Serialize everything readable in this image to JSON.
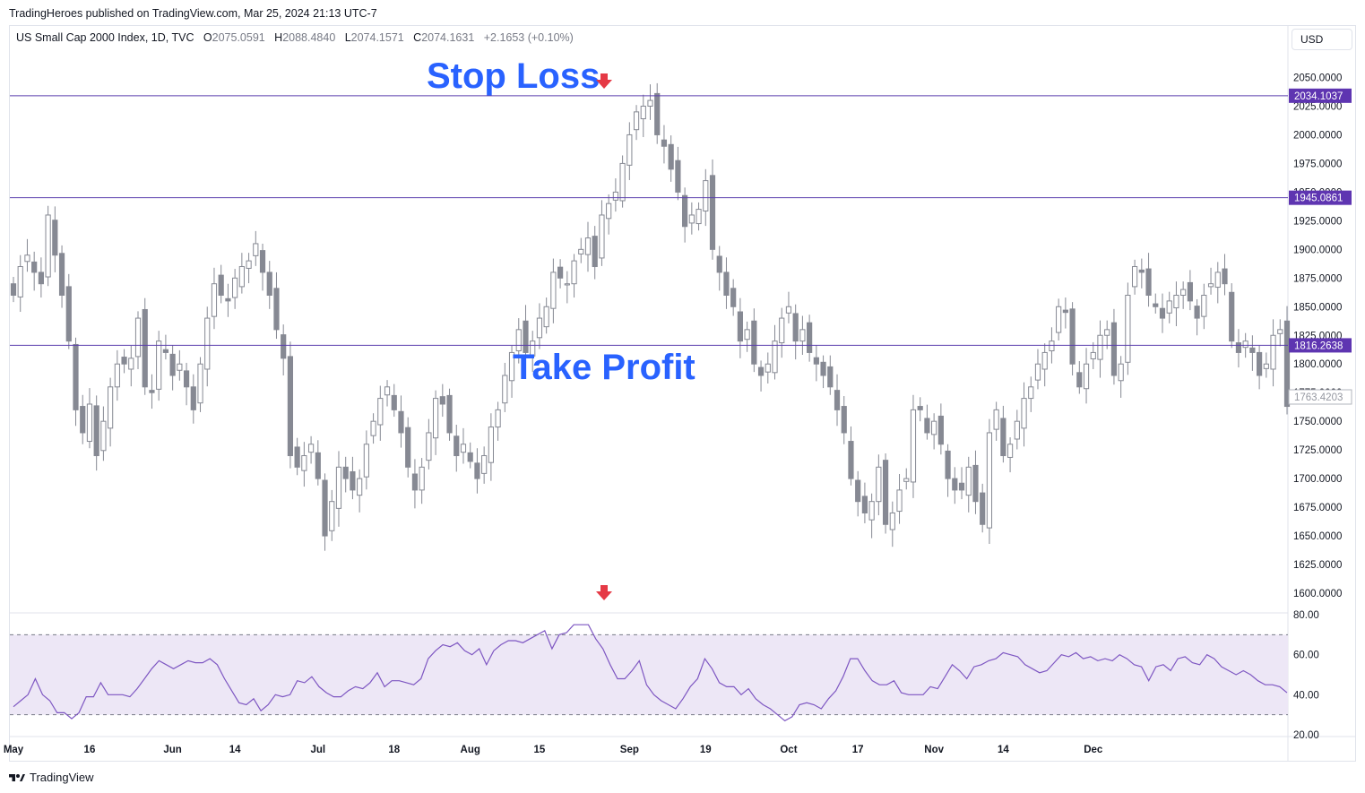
{
  "publisher_line": "TradingHeroes published on TradingView.com, Mar 25, 2024 21:13 UTC-7",
  "symbol_title": "US Small Cap 2000 Index, 1D, TVC",
  "ohlc": {
    "open_label": "O",
    "open": "2075.0591",
    "high_label": "H",
    "high": "2088.4840",
    "low_label": "L",
    "low": "2074.1571",
    "close_label": "C",
    "close": "2074.1631",
    "change": "+2.1653 (+0.10%)"
  },
  "currency": "USD",
  "brand": "TradingView",
  "annotations": {
    "stop_loss": "Stop Loss",
    "take_profit": "Take Profit"
  },
  "colors": {
    "candle": "#868993",
    "level_line": "#5b3fae",
    "level_badge": "#5e35b1",
    "annotation": "#2962ff",
    "arrow": "#e53945",
    "rsi_line": "#7e57c2",
    "rsi_band": "#ede7f6"
  },
  "chart_data": {
    "type": "candlestick",
    "price_axis": {
      "ylim": [
        1590,
        2060
      ],
      "ticks": [
        "2050.0000",
        "2025.0000",
        "2000.0000",
        "1975.0000",
        "1950.0000",
        "1925.0000",
        "1900.0000",
        "1875.0000",
        "1850.0000",
        "1825.0000",
        "1800.0000",
        "1775.0000",
        "1750.0000",
        "1725.0000",
        "1700.0000",
        "1675.0000",
        "1650.0000",
        "1625.0000",
        "1600.0000"
      ],
      "tick_values": [
        2050,
        2025,
        2000,
        1975,
        1950,
        1925,
        1900,
        1875,
        1850,
        1825,
        1800,
        1775,
        1750,
        1725,
        1700,
        1675,
        1650,
        1625,
        1600
      ]
    },
    "levels": [
      {
        "value": 2034.1037,
        "label": "2034.1037"
      },
      {
        "value": 1945.0861,
        "label": "1945.0861"
      },
      {
        "value": 1816.2638,
        "label": "1816.2638"
      }
    ],
    "last_price": {
      "value": 1763.4203,
      "label": "1763.4203"
    },
    "x_ticks": [
      "May",
      "16",
      "Jun",
      "14",
      "Jul",
      "18",
      "Aug",
      "15",
      "Sep",
      "19",
      "Oct",
      "17",
      "Nov",
      "14",
      "Dec"
    ],
    "x_tick_index": [
      0,
      11,
      23,
      32,
      44,
      55,
      66,
      76,
      89,
      100,
      112,
      122,
      133,
      143,
      156
    ],
    "close": [
      1860,
      1885,
      1895,
      1880,
      1870,
      1930,
      1895,
      1860,
      1820,
      1760,
      1740,
      1765,
      1720,
      1750,
      1780,
      1800,
      1800,
      1805,
      1840,
      1780,
      1775,
      1820,
      1810,
      1790,
      1800,
      1780,
      1760,
      1800,
      1840,
      1870,
      1860,
      1855,
      1875,
      1885,
      1890,
      1905,
      1880,
      1860,
      1830,
      1805,
      1720,
      1710,
      1720,
      1730,
      1700,
      1650,
      1680,
      1710,
      1700,
      1690,
      1700,
      1730,
      1750,
      1770,
      1780,
      1760,
      1740,
      1710,
      1690,
      1710,
      1740,
      1770,
      1765,
      1740,
      1720,
      1730,
      1715,
      1700,
      1720,
      1745,
      1760,
      1790,
      1810,
      1830,
      1810,
      1820,
      1840,
      1850,
      1880,
      1875,
      1870,
      1890,
      1900,
      1910,
      1885,
      1930,
      1940,
      1950,
      1975,
      2000,
      2020,
      2025,
      2030,
      2000,
      1990,
      1970,
      1950,
      1920,
      1930,
      1935,
      1960,
      1900,
      1880,
      1860,
      1850,
      1820,
      1830,
      1800,
      1790,
      1800,
      1820,
      1840,
      1850,
      1820,
      1830,
      1810,
      1800,
      1790,
      1780,
      1760,
      1740,
      1700,
      1680,
      1670,
      1680,
      1710,
      1660,
      1670,
      1690,
      1700,
      1760,
      1760,
      1740,
      1750,
      1730,
      1700,
      1690,
      1690,
      1710,
      1680,
      1660,
      1740,
      1760,
      1720,
      1730,
      1750,
      1770,
      1780,
      1800,
      1810,
      1820,
      1850,
      1845,
      1800,
      1780,
      1800,
      1810,
      1825,
      1830,
      1790,
      1800,
      1860,
      1885,
      1880,
      1860,
      1850,
      1840,
      1855,
      1860,
      1865,
      1855,
      1840,
      1860,
      1870,
      1880,
      1870,
      1820,
      1810,
      1820,
      1810,
      1790,
      1800,
      1825,
      1830,
      1763
    ],
    "rsi": {
      "upper": 70,
      "lower": 30,
      "ylim": [
        20,
        80
      ],
      "ticks": [
        "80.00",
        "60.00",
        "40.00",
        "20.00"
      ],
      "tick_values": [
        80,
        60,
        40,
        20
      ],
      "values": [
        34,
        37,
        40,
        48,
        40,
        37,
        31,
        31,
        28,
        31,
        39,
        39,
        46,
        40,
        40,
        40,
        39,
        43,
        48,
        53,
        57,
        55,
        53,
        55,
        57,
        56,
        56,
        58,
        55,
        48,
        42,
        36,
        35,
        38,
        32,
        35,
        40,
        39,
        40,
        47,
        46,
        49,
        44,
        41,
        39,
        39,
        42,
        44,
        43,
        46,
        51,
        44,
        47,
        47,
        46,
        45,
        48,
        58,
        62,
        65,
        64,
        66,
        62,
        60,
        63,
        55,
        62,
        65,
        67,
        67,
        66,
        68,
        70,
        72,
        63,
        70,
        71,
        75,
        75,
        75,
        68,
        63,
        55,
        48,
        48,
        52,
        57,
        45,
        40,
        37,
        35,
        33,
        38,
        44,
        48,
        58,
        53,
        46,
        44,
        44,
        40,
        43,
        38,
        35,
        33,
        30,
        27,
        29,
        35,
        36,
        35,
        33,
        38,
        42,
        49,
        58,
        58,
        52,
        47,
        45,
        45,
        47,
        41,
        40,
        40,
        40,
        44,
        43,
        49,
        55,
        52,
        48,
        54,
        55,
        57,
        58,
        61,
        60,
        59,
        55,
        53,
        51,
        52,
        56,
        60,
        59,
        61,
        58,
        59,
        57,
        58,
        57,
        60,
        58,
        55,
        54,
        47,
        54,
        55,
        52,
        58,
        59,
        56,
        55,
        60,
        58,
        54,
        52,
        50,
        52,
        50,
        47,
        45,
        45,
        44,
        41
      ]
    }
  }
}
